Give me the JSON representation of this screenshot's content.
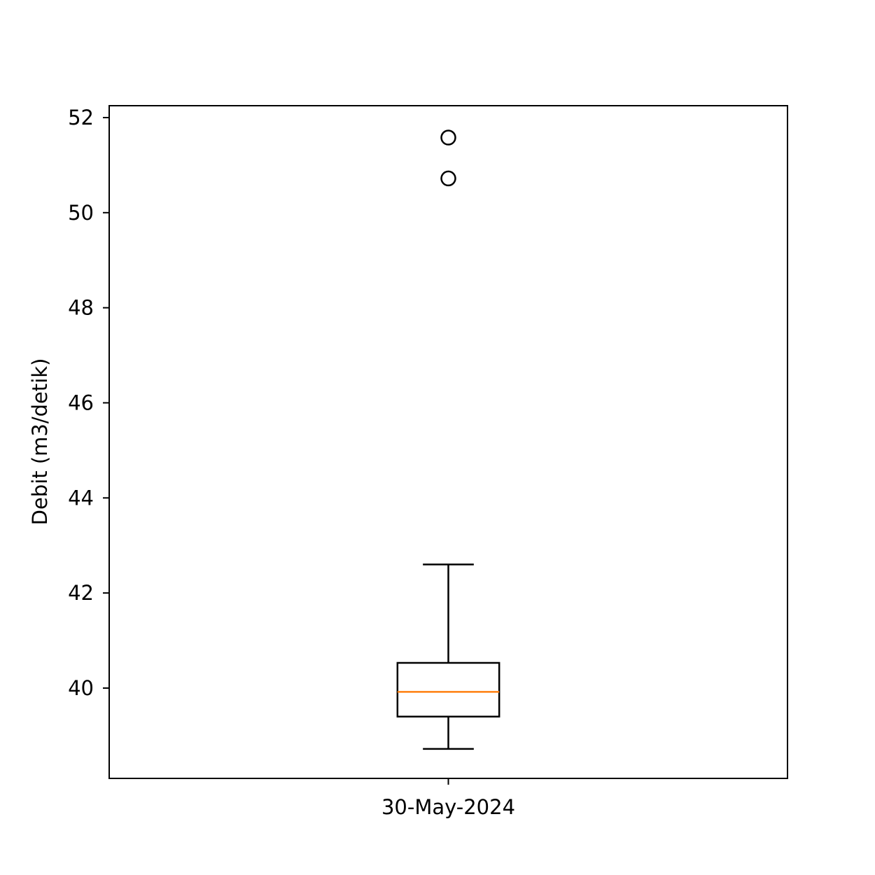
{
  "chart_data": {
    "type": "box",
    "title": "",
    "xlabel": "",
    "ylabel": "Debit (m3/detik)",
    "ylim": [
      38.1,
      52.25
    ],
    "yticks": [
      "40",
      "42",
      "44",
      "46",
      "48",
      "50",
      "52"
    ],
    "grid": false,
    "categories": [
      "30-May-2024"
    ],
    "boxes": [
      {
        "category": "30-May-2024",
        "whisker_low": 38.72,
        "q1": 39.4,
        "median": 39.92,
        "q3": 40.53,
        "whisker_high": 42.6,
        "outliers": [
          50.72,
          51.58
        ]
      }
    ],
    "colors": {
      "box": "#000000",
      "median": "#ff7f0e",
      "outlier_edge": "#000000"
    }
  }
}
